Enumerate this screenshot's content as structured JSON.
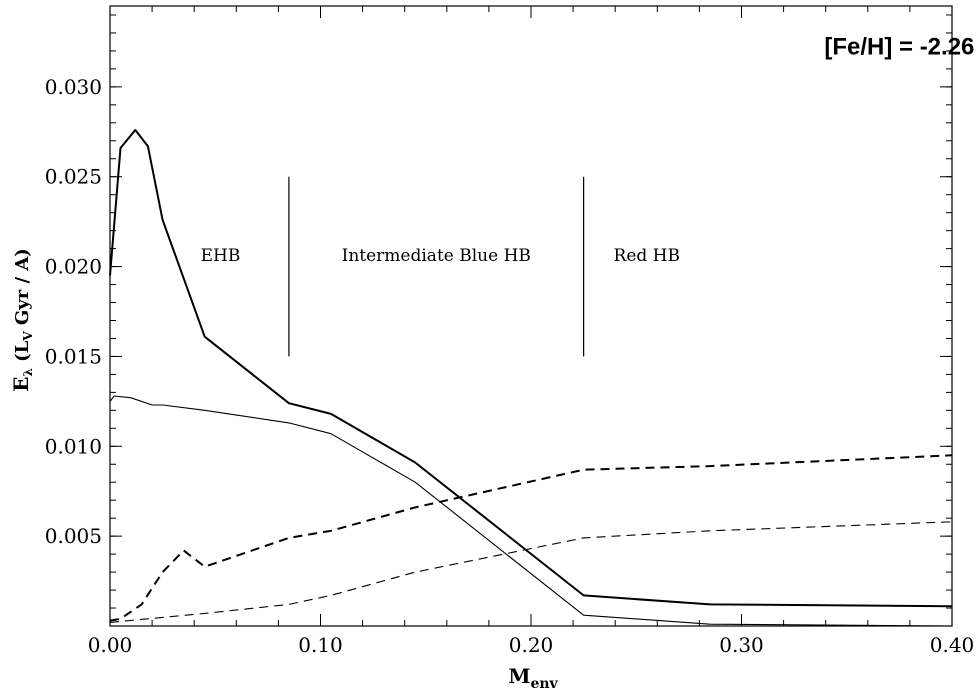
{
  "chart_data": {
    "type": "line",
    "title": "",
    "xlabel": {
      "main": "M",
      "sub": "env"
    },
    "ylabel": {
      "main": "E",
      "sub1": "λ",
      "mid": " (L",
      "sub2": "V",
      "end": " Gyr / A)"
    },
    "xlim": [
      0.0,
      0.4
    ],
    "ylim": [
      0.0,
      0.0345
    ],
    "x_ticks": [
      {
        "value": 0.0,
        "label": "0.00"
      },
      {
        "value": 0.1,
        "label": "0.10"
      },
      {
        "value": 0.2,
        "label": "0.20"
      },
      {
        "value": 0.3,
        "label": "0.30"
      },
      {
        "value": 0.4,
        "label": "0.40"
      }
    ],
    "y_ticks": [
      {
        "value": 0.005,
        "label": "0.005"
      },
      {
        "value": 0.01,
        "label": "0.010"
      },
      {
        "value": 0.015,
        "label": "0.015"
      },
      {
        "value": 0.02,
        "label": "0.020"
      },
      {
        "value": 0.025,
        "label": "0.025"
      },
      {
        "value": 0.03,
        "label": "0.030"
      }
    ],
    "x_minor_step": 0.02,
    "y_minor_step": 0.001,
    "grid": false,
    "series": [
      {
        "style": "solid-thick",
        "points": [
          [
            0.0,
            0.0195
          ],
          [
            0.005,
            0.0266
          ],
          [
            0.012,
            0.0276
          ],
          [
            0.018,
            0.0267
          ],
          [
            0.025,
            0.0226
          ],
          [
            0.045,
            0.0161
          ],
          [
            0.085,
            0.0124
          ],
          [
            0.105,
            0.0118
          ],
          [
            0.145,
            0.0091
          ],
          [
            0.225,
            0.0017
          ],
          [
            0.285,
            0.0012
          ],
          [
            0.4,
            0.0011
          ]
        ]
      },
      {
        "style": "solid-thin",
        "points": [
          [
            0.0,
            0.0125
          ],
          [
            0.002,
            0.0128
          ],
          [
            0.01,
            0.0127
          ],
          [
            0.02,
            0.0123
          ],
          [
            0.025,
            0.0123
          ],
          [
            0.045,
            0.012
          ],
          [
            0.085,
            0.0113
          ],
          [
            0.105,
            0.0107
          ],
          [
            0.145,
            0.008
          ],
          [
            0.225,
            0.0006
          ],
          [
            0.285,
            0.0001
          ],
          [
            0.4,
            0.0
          ]
        ]
      },
      {
        "style": "dashed-thick",
        "points": [
          [
            0.0,
            0.0003
          ],
          [
            0.005,
            0.0004
          ],
          [
            0.015,
            0.0012
          ],
          [
            0.025,
            0.003
          ],
          [
            0.035,
            0.0042
          ],
          [
            0.045,
            0.0033
          ],
          [
            0.085,
            0.0049
          ],
          [
            0.105,
            0.0053
          ],
          [
            0.145,
            0.0066
          ],
          [
            0.225,
            0.0087
          ],
          [
            0.285,
            0.0089
          ],
          [
            0.4,
            0.0095
          ]
        ]
      },
      {
        "style": "dashed-thin",
        "points": [
          [
            0.0,
            0.0002
          ],
          [
            0.045,
            0.0007
          ],
          [
            0.085,
            0.0012
          ],
          [
            0.105,
            0.0017
          ],
          [
            0.145,
            0.003
          ],
          [
            0.225,
            0.0049
          ],
          [
            0.285,
            0.0053
          ],
          [
            0.4,
            0.0058
          ]
        ]
      }
    ],
    "dividers": [
      {
        "x": 0.085,
        "y_from": 0.015,
        "y_to": 0.025
      },
      {
        "x": 0.225,
        "y_from": 0.015,
        "y_to": 0.025
      }
    ],
    "annotations": [
      {
        "text": "EHB",
        "x": 0.0525,
        "y": 0.0203,
        "style": "annot"
      },
      {
        "text": "Intermediate Blue HB",
        "x": 0.155,
        "y": 0.0203,
        "style": "annot"
      },
      {
        "text": "Red HB",
        "x": 0.255,
        "y": 0.0203,
        "style": "annot"
      },
      {
        "text": "[Fe/H] = -2.26",
        "x": 0.375,
        "y": 0.0318,
        "style": "big-annot"
      }
    ]
  }
}
